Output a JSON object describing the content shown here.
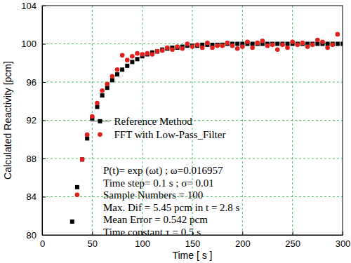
{
  "chart_data": {
    "type": "scatter",
    "x_label": "Time [ s ]",
    "y_label": "Calculated Reactivity [pcm]",
    "xlim": [
      0,
      300
    ],
    "ylim": [
      80,
      104
    ],
    "xticks": [
      0,
      50,
      100,
      150,
      200,
      250,
      300
    ],
    "yticks": [
      80,
      84,
      88,
      92,
      96,
      100,
      104
    ],
    "grid": true,
    "legend": "left",
    "series": [
      {
        "name": "Reference Method",
        "color": "#000000",
        "marker": "square",
        "x": [
          30,
          35,
          40,
          45,
          50,
          55,
          60,
          65,
          70,
          75,
          80,
          85,
          90,
          95,
          100,
          105,
          110,
          115,
          120,
          125,
          130,
          135,
          140,
          145,
          150,
          155,
          160,
          165,
          170,
          175,
          180,
          185,
          190,
          195,
          200,
          205,
          210,
          215,
          220,
          225,
          230,
          235,
          240,
          245,
          250,
          255,
          260,
          265,
          270,
          275,
          280,
          285,
          290,
          295,
          300
        ],
        "values": [
          81.4,
          85.0,
          87.9,
          90.1,
          92.2,
          93.4,
          94.6,
          95.4,
          96.2,
          96.8,
          97.3,
          97.7,
          98.1,
          98.4,
          98.7,
          98.9,
          99.1,
          99.2,
          99.4,
          99.5,
          99.6,
          99.6,
          99.7,
          99.8,
          99.8,
          99.8,
          99.9,
          99.9,
          99.9,
          99.9,
          99.9,
          100.0,
          100.0,
          100.0,
          100.0,
          100.0,
          100.0,
          100.0,
          100.0,
          100.0,
          100.0,
          100.0,
          100.0,
          100.0,
          100.0,
          100.0,
          100.0,
          100.0,
          100.0,
          100.0,
          100.0,
          100.0,
          100.0,
          100.0,
          100.0
        ]
      },
      {
        "name": "FFT with Low-Pass_Filter",
        "color": "#e0201c",
        "marker": "circle",
        "x": [
          35,
          40,
          45,
          50,
          55,
          60,
          65,
          70,
          75,
          80,
          85,
          90,
          95,
          100,
          105,
          110,
          115,
          120,
          125,
          130,
          135,
          140,
          145,
          150,
          155,
          160,
          165,
          170,
          175,
          180,
          185,
          190,
          195,
          200,
          205,
          210,
          215,
          220,
          225,
          230,
          235,
          240,
          245,
          250,
          255,
          260,
          265,
          270,
          275,
          280,
          285,
          290,
          295
        ],
        "values": [
          84.2,
          87.9,
          90.5,
          92.4,
          93.8,
          95.1,
          95.8,
          96.6,
          97.3,
          98.8,
          98.3,
          98.7,
          99.0,
          98.9,
          99.0,
          98.9,
          99.2,
          99.3,
          99.6,
          99.4,
          99.7,
          99.5,
          100.0,
          99.7,
          99.9,
          99.6,
          100.1,
          99.6,
          99.8,
          99.8,
          100.1,
          99.8,
          99.5,
          99.7,
          100.2,
          99.6,
          100.1,
          100.3,
          99.8,
          99.9,
          99.4,
          99.9,
          99.6,
          100.2,
          99.9,
          100.1,
          99.7,
          99.9,
          100.4,
          100.2,
          99.6,
          99.9,
          101.0
        ]
      }
    ],
    "annotations": [
      "P(t)= exp (ωt)  ;  ω=0.016957",
      "Time step= 0.1 s  ;  σ= 0.01",
      "Sample Numbers = 100",
      "Max. Dif = 5.45 pcm  in t = 2.8 s",
      "Mean Error =  0.542 pcm",
      "Time constant  τ = 0.5 s"
    ]
  }
}
